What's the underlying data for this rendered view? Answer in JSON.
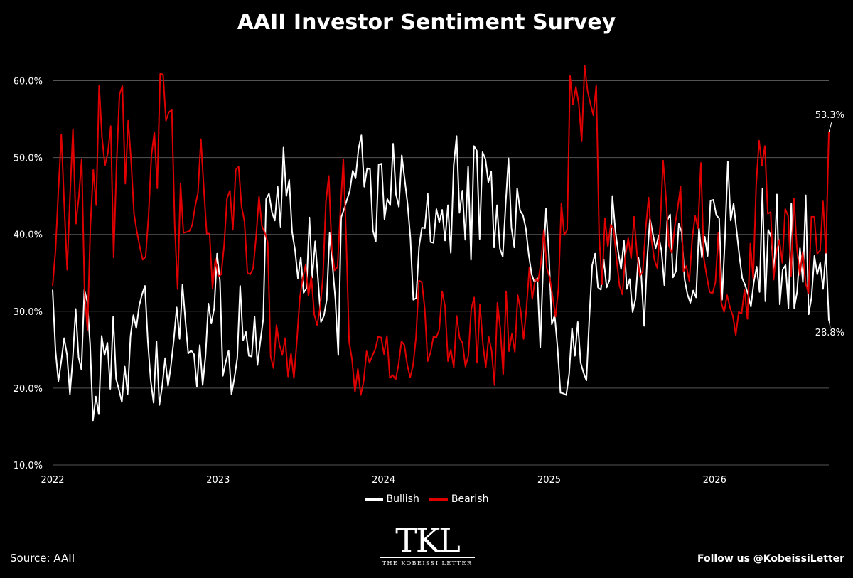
{
  "title": "AAII Investor Sentiment Survey",
  "source": "Source: AAII",
  "follow": "Follow us @KobeissiLetter",
  "logo": {
    "mark": "TKL",
    "subtitle": "THE KOBEISSI LETTER"
  },
  "colors": {
    "background": "#000000",
    "bullish": "#ffffff",
    "bearish": "#e00000",
    "grid": "#555555"
  },
  "chart_data": {
    "type": "line",
    "x_start_year": 2022.0,
    "x_end_year": 2026.69,
    "x_ticks": [
      "2022",
      "2023",
      "2024",
      "2025",
      "2026"
    ],
    "ylim": [
      10,
      63
    ],
    "y_ticks": [
      "10.0%",
      "20.0%",
      "30.0%",
      "40.0%",
      "50.0%",
      "60.0%"
    ],
    "y_tick_values": [
      10,
      20,
      30,
      40,
      50,
      60
    ],
    "grid": "horizontal",
    "legend": "bottom-center",
    "end_labels": {
      "bearish": "53.3%",
      "bullish": "28.8%"
    },
    "series": [
      {
        "name": "Bullish",
        "color": "#ffffff",
        "values": [
          32.8,
          24.9,
          20.9,
          23.5,
          26.5,
          24.3,
          19.2,
          23.9,
          30.3,
          24.0,
          22.4,
          32.8,
          31.3,
          25.7,
          15.8,
          18.9,
          16.6,
          26.8,
          24.3,
          25.9,
          19.9,
          29.3,
          21.2,
          19.8,
          18.2,
          22.8,
          19.2,
          26.8,
          29.5,
          27.8,
          30.7,
          32.2,
          33.3,
          26.1,
          21.0,
          18.1,
          26.1,
          17.8,
          20.3,
          23.9,
          20.3,
          22.9,
          26.3,
          30.5,
          26.4,
          33.5,
          28.9,
          24.5,
          24.9,
          24.4,
          20.2,
          25.6,
          20.4,
          24.2,
          31.0,
          28.4,
          30.4,
          37.5,
          33.9,
          21.6,
          23.4,
          24.9,
          19.2,
          21.3,
          23.9,
          33.3,
          26.2,
          27.3,
          24.2,
          24.1,
          29.3,
          23.0,
          26.1,
          29.0,
          44.6,
          45.3,
          42.9,
          41.8,
          46.2,
          41.0,
          51.3,
          45.0,
          47.1,
          40.3,
          38.0,
          34.3,
          37.0,
          32.4,
          33.0,
          42.2,
          34.4,
          39.1,
          34.1,
          28.6,
          29.4,
          31.5,
          40.2,
          36.0,
          31.5,
          24.3,
          42.2,
          43.3,
          44.5,
          45.7,
          48.3,
          47.3,
          51.1,
          52.9,
          46.2,
          48.6,
          48.5,
          40.5,
          39.1,
          49.1,
          49.2,
          42.0,
          44.6,
          43.8,
          51.8,
          45.2,
          43.6,
          50.3,
          47.2,
          44.0,
          39.5,
          31.5,
          31.7,
          38.4,
          40.9,
          40.8,
          45.3,
          39.0,
          38.9,
          43.3,
          41.6,
          43.2,
          39.2,
          43.8,
          37.6,
          49.0,
          52.8,
          42.8,
          45.7,
          39.3,
          48.8,
          36.7,
          51.5,
          50.9,
          39.4,
          50.7,
          49.8,
          46.8,
          48.2,
          38.3,
          43.8,
          38.2,
          37.1,
          43.9,
          49.9,
          40.9,
          38.3,
          46.0,
          43.1,
          42.5,
          40.8,
          37.4,
          34.8,
          33.8,
          34.3,
          25.3,
          35.8,
          43.4,
          37.4,
          28.3,
          29.5,
          25.2,
          19.4,
          19.3,
          19.1,
          21.8,
          27.8,
          24.2,
          28.6,
          23.3,
          22.0,
          21.0,
          29.1,
          36.0,
          37.5,
          33.1,
          32.8,
          36.7,
          33.1,
          34.1,
          45.0,
          40.6,
          37.7,
          35.5,
          39.2,
          32.9,
          34.2,
          29.9,
          31.6,
          37.0,
          34.7,
          28.1,
          36.5,
          42.1,
          40.1,
          38.2,
          39.8,
          37.9,
          33.4,
          41.8,
          42.6,
          34.4,
          35.2,
          41.4,
          40.3,
          34.2,
          32.2,
          31.1,
          32.7,
          31.8,
          40.8,
          37.0,
          39.7,
          37.2,
          44.4,
          44.5,
          42.5,
          42.1,
          31.5,
          39.4,
          49.5,
          41.8,
          44.0,
          40.6,
          37.2,
          34.3,
          33.4,
          32.2,
          30.6,
          33.8,
          35.8,
          32.5,
          46.0,
          31.3,
          40.6,
          39.7,
          34.8,
          45.2,
          30.9,
          35.4,
          36.0,
          30.4,
          44.0,
          30.4,
          32.5,
          38.2,
          33.8,
          45.1,
          29.6,
          31.8,
          37.2,
          34.8,
          36.3,
          32.9,
          37.9,
          28.8
        ]
      },
      {
        "name": "Bearish",
        "color": "#e00000",
        "values": [
          33.3,
          37.9,
          45.8,
          53.0,
          43.9,
          35.4,
          45.1,
          53.7,
          41.4,
          44.8,
          49.8,
          32.4,
          27.5,
          41.1,
          48.4,
          43.8,
          59.4,
          52.6,
          49.0,
          50.6,
          54.1,
          37.0,
          49.1,
          58.2,
          59.3,
          46.6,
          54.8,
          49.6,
          42.7,
          40.3,
          38.4,
          36.7,
          37.1,
          42.4,
          50.3,
          53.3,
          46.0,
          60.9,
          60.8,
          54.8,
          55.9,
          56.2,
          41.2,
          32.9,
          46.6,
          40.2,
          40.3,
          40.4,
          41.2,
          43.6,
          45.4,
          52.4,
          46.1,
          40.1,
          40.1,
          33.0,
          36.8,
          34.5,
          34.8,
          38.6,
          44.7,
          45.7,
          40.6,
          48.4,
          48.8,
          43.6,
          41.7,
          35.0,
          34.8,
          35.6,
          39.7,
          44.9,
          41.1,
          40.2,
          39.0,
          24.1,
          22.6,
          28.2,
          25.7,
          24.3,
          26.5,
          21.5,
          24.5,
          21.3,
          26.0,
          31.6,
          34.2,
          36.0,
          32.0,
          34.5,
          29.6,
          28.2,
          30.4,
          34.5,
          44.2,
          47.6,
          38.4,
          35.3,
          35.8,
          43.1,
          49.8,
          39.4,
          26.0,
          23.7,
          19.5,
          22.5,
          19.1,
          20.9,
          24.8,
          23.3,
          24.2,
          25.1,
          26.7,
          26.6,
          24.4,
          26.8,
          21.3,
          21.7,
          21.1,
          23.1,
          26.1,
          25.6,
          23.0,
          21.4,
          23.0,
          26.6,
          34.0,
          33.8,
          30.4,
          23.5,
          24.6,
          26.7,
          26.6,
          27.6,
          32.6,
          30.6,
          23.5,
          25.0,
          22.7,
          29.4,
          26.5,
          25.9,
          22.8,
          24.2,
          30.3,
          31.8,
          23.3,
          30.9,
          25.8,
          22.7,
          26.7,
          24.9,
          20.4,
          31.1,
          27.7,
          21.8,
          32.6,
          24.8,
          27.1,
          24.7,
          32.1,
          30.1,
          26.4,
          30.4,
          35.7,
          31.6,
          34.2,
          33.9,
          36.4,
          40.6,
          35.6,
          34.4,
          31.9,
          29.3,
          33.0,
          44.0,
          39.9,
          40.6,
          60.6,
          56.9,
          59.2,
          57.0,
          52.1,
          62.0,
          58.7,
          57.0,
          55.5,
          59.4,
          39.8,
          33.5,
          42.1,
          38.4,
          41.3,
          40.6,
          36.7,
          33.3,
          32.2,
          37.2,
          39.5,
          36.9,
          42.3,
          37.5,
          34.6,
          35.2,
          40.7,
          44.8,
          39.3,
          36.7,
          35.6,
          41.2,
          49.6,
          44.7,
          38.5,
          37.6,
          41.0,
          43.4,
          46.2,
          35.2,
          35.9,
          33.9,
          39.4,
          42.4,
          40.8,
          49.3,
          36.9,
          34.6,
          32.5,
          32.3,
          33.8,
          40.2,
          31.1,
          29.9,
          32.1,
          30.5,
          29.4,
          26.9,
          29.9,
          29.7,
          32.8,
          29.0,
          38.8,
          34.2,
          46.3,
          52.2,
          49.0,
          51.5,
          42.7,
          42.9,
          34.1,
          37.8,
          39.3,
          36.3,
          43.3,
          42.4,
          34.6,
          44.7,
          38.3,
          34.7,
          37.7,
          33.7,
          32.3,
          42.3,
          42.3,
          37.5,
          37.9,
          44.3,
          37.6,
          53.3
        ]
      }
    ]
  }
}
